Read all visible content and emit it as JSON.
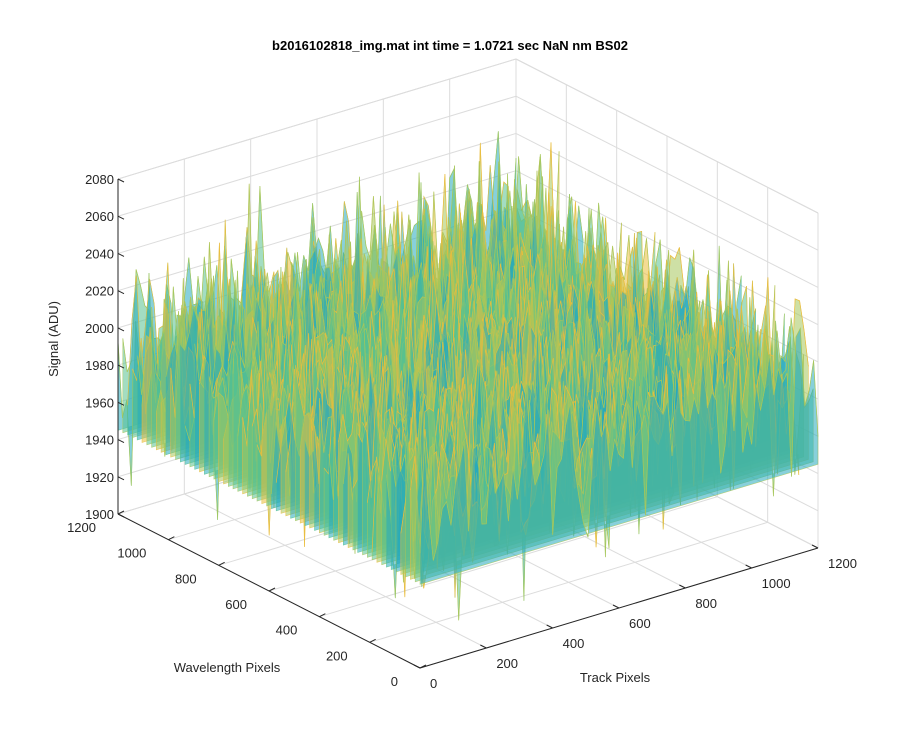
{
  "chart_data": {
    "type": "surface",
    "title": "b2016102818_img.mat int time = 1.0721 sec  NaN nm BS02",
    "zlabel": "Signal (ADU)",
    "xlabel": "Track Pixels",
    "ylabel": "Wavelength Pixels",
    "zlim": [
      1900,
      2080
    ],
    "xlim": [
      0,
      1200
    ],
    "ylim": [
      0,
      1200
    ],
    "z_ticks": [
      "1900",
      "1920",
      "1940",
      "1960",
      "1980",
      "2000",
      "2020",
      "2040",
      "2060",
      "2080"
    ],
    "x_ticks": [
      "0",
      "200",
      "400",
      "600",
      "800",
      "1000",
      "1200"
    ],
    "y_ticks": [
      "0",
      "200",
      "400",
      "600",
      "800",
      "1000",
      "1200"
    ],
    "surface_base_level": 1990,
    "surface_noise_range": [
      1905,
      2075
    ],
    "colormap": [
      "#0b5fb8",
      "#1f86c6",
      "#25a9bd",
      "#57c190",
      "#a6c65b",
      "#e9bd3d"
    ],
    "grid": true
  }
}
